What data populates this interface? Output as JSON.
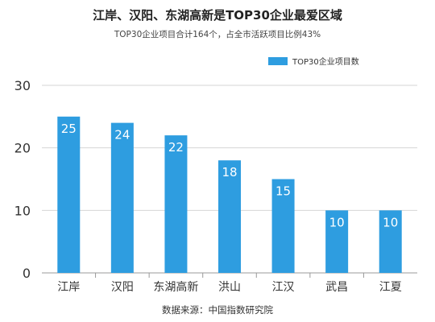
{
  "chart_data": {
    "type": "bar",
    "title": "江岸、汉阳、东湖高新是TOP30企业最爱区域",
    "subtitle": "TOP30企业项目合计164个，占全市活跃项目比例43%",
    "categories": [
      "江岸",
      "汉阳",
      "东湖高新",
      "洪山",
      "江汉",
      "武昌",
      "江夏"
    ],
    "series": [
      {
        "name": "TOP30企业项目数",
        "values": [
          25,
          24,
          22,
          18,
          15,
          10,
          10
        ]
      }
    ],
    "ylim": [
      0,
      30
    ],
    "yticks": [
      0,
      10,
      20,
      30
    ],
    "grid": true,
    "legend_position": "top-right",
    "bar_color": "#2e9de0",
    "source": "数据来源：中国指数研究院"
  }
}
